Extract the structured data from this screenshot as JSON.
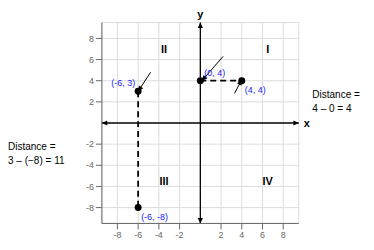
{
  "chart_data": {
    "type": "scatter",
    "x_label": "x",
    "y_label": "y",
    "xlim": [
      -9.5,
      9.5
    ],
    "ylim": [
      -9.5,
      9.5
    ],
    "xticks": [
      -8,
      -6,
      -4,
      -2,
      2,
      4,
      6,
      8
    ],
    "yticks": [
      -8,
      -6,
      -4,
      -2,
      2,
      4,
      6,
      8
    ],
    "grid": true,
    "data_labels": true,
    "series": [
      {
        "type": "scatter",
        "marker": "circle",
        "color": "#000000",
        "x": [
          0,
          4,
          -6,
          -6
        ],
        "values": [
          4,
          4,
          3,
          -8
        ],
        "value_labels": [
          "(0, 4)",
          "(4, 4)",
          "(-6, 3)",
          "(-6, -8)"
        ]
      },
      {
        "type": "line",
        "line_style": "dashed",
        "color": "#000000",
        "x": [
          0,
          4
        ],
        "values": [
          4,
          4
        ]
      },
      {
        "type": "line",
        "line_style": "dashed",
        "color": "#000000",
        "x": [
          -6,
          -6
        ],
        "values": [
          3,
          -8
        ]
      }
    ],
    "annotations": [
      {
        "text": "I",
        "x": 6.5,
        "y": 7.0
      },
      {
        "text": "II",
        "x": -3.5,
        "y": 7.0
      },
      {
        "text": "III",
        "x": -3.5,
        "y": -5.5
      },
      {
        "text": "IV",
        "x": 6.5,
        "y": -5.5
      }
    ],
    "arrows": [
      {
        "from": [
          2.2,
          6.3
        ],
        "to": [
          0.15,
          4
        ]
      },
      {
        "from": [
          3.3,
          2.8
        ],
        "to": [
          4,
          4.1
        ]
      },
      {
        "from": [
          -4.8,
          4.8
        ],
        "to": [
          -6,
          3
        ]
      }
    ],
    "side_annotations": {
      "right": [
        "Distance =",
        "4 – 0 = 4"
      ],
      "left": [
        "Distance =",
        "3 – (−8) = 11"
      ]
    }
  }
}
